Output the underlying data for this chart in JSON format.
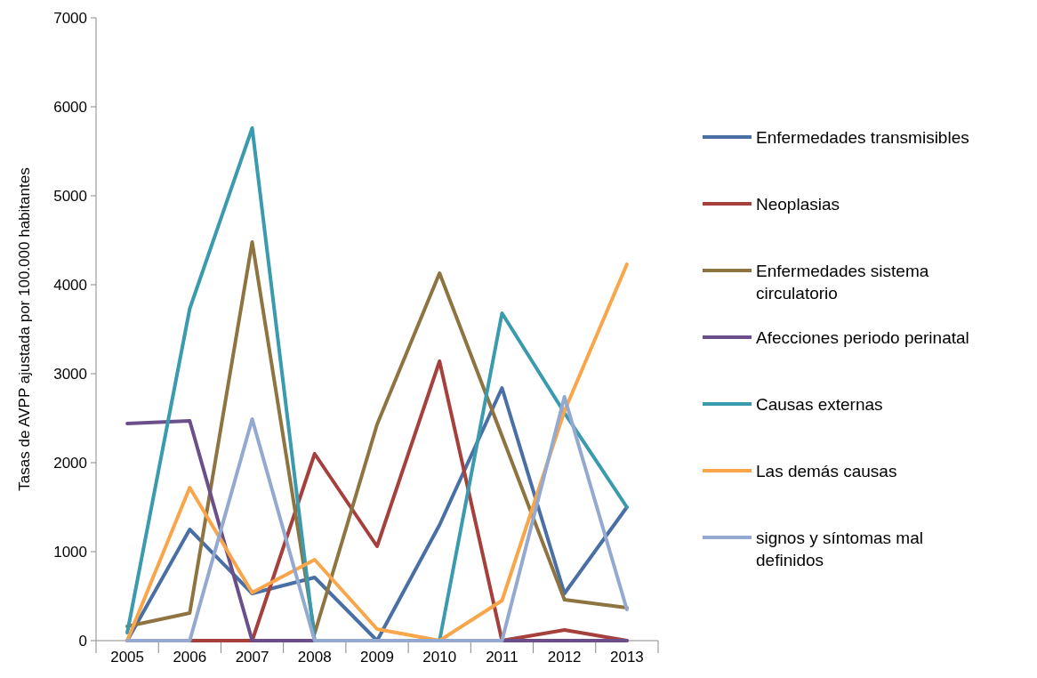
{
  "chart_data": {
    "type": "line",
    "ylabel": "Tasas de AVPP ajustada por 100.000 habitantes",
    "categories": [
      "2005",
      "2006",
      "2007",
      "2008",
      "2009",
      "2010",
      "2011",
      "2012",
      "2013"
    ],
    "series": [
      {
        "name": "Enfermedades transmisibles",
        "color": "#4a6fa5",
        "values": [
          0,
          1250,
          530,
          710,
          0,
          1300,
          2840,
          530,
          1500
        ]
      },
      {
        "name": "Neoplasias",
        "color": "#a5403d",
        "values": [
          0,
          0,
          0,
          2100,
          1060,
          3140,
          0,
          120,
          0
        ]
      },
      {
        "name": "Enfermedades sistema circulatorio",
        "color": "#8e7440",
        "values": [
          160,
          310,
          4480,
          80,
          2430,
          4130,
          2300,
          460,
          370
        ]
      },
      {
        "name": "Afecciones periodo perinatal",
        "color": "#6b4f8a",
        "values": [
          2440,
          2470,
          0,
          0,
          0,
          0,
          0,
          0,
          0
        ]
      },
      {
        "name": "Causas externas",
        "color": "#3a9aae",
        "values": [
          90,
          3730,
          5760,
          0,
          0,
          0,
          3680,
          2560,
          1500
        ]
      },
      {
        "name": "Las demás causas",
        "color": "#f9a54a",
        "values": [
          0,
          1720,
          540,
          910,
          130,
          0,
          450,
          2580,
          4230
        ]
      },
      {
        "name": "signos y síntomas mal definidos",
        "color": "#93a9d0",
        "values": [
          0,
          0,
          2490,
          0,
          0,
          0,
          0,
          2740,
          350
        ]
      }
    ],
    "ylim": [
      0,
      7000
    ],
    "yticks": [
      0,
      1000,
      2000,
      3000,
      4000,
      5000,
      6000,
      7000
    ],
    "legend": "right"
  }
}
